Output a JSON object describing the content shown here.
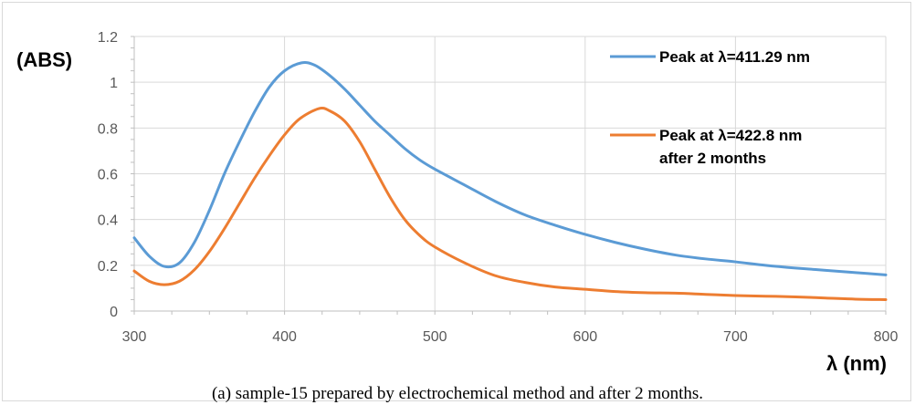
{
  "chart_data": {
    "type": "line",
    "ylabel": "(ABS)",
    "xlabel": "λ (nm)",
    "caption": "(a) sample-15 prepared by electrochemical method and after 2 months.",
    "xlim": [
      300,
      800
    ],
    "ylim": [
      0,
      1.2
    ],
    "x_ticks": [
      "300",
      "400",
      "500",
      "600",
      "700",
      "800"
    ],
    "y_ticks": [
      "0",
      "0.2",
      "0.4",
      "0.6",
      "0.8",
      "1",
      "1.2"
    ],
    "grid": true,
    "legend_position": "top-right",
    "series": [
      {
        "name_lines": [
          "Peak at λ=411.29 nm"
        ],
        "color": "#5b9bd5",
        "points": [
          [
            300,
            0.32
          ],
          [
            310,
            0.24
          ],
          [
            320,
            0.195
          ],
          [
            330,
            0.21
          ],
          [
            340,
            0.3
          ],
          [
            350,
            0.44
          ],
          [
            360,
            0.6
          ],
          [
            370,
            0.74
          ],
          [
            380,
            0.87
          ],
          [
            390,
            0.98
          ],
          [
            400,
            1.05
          ],
          [
            411.29,
            1.085
          ],
          [
            420,
            1.075
          ],
          [
            430,
            1.03
          ],
          [
            440,
            0.97
          ],
          [
            450,
            0.9
          ],
          [
            460,
            0.83
          ],
          [
            470,
            0.77
          ],
          [
            480,
            0.71
          ],
          [
            490,
            0.66
          ],
          [
            500,
            0.62
          ],
          [
            520,
            0.55
          ],
          [
            540,
            0.48
          ],
          [
            560,
            0.42
          ],
          [
            580,
            0.375
          ],
          [
            600,
            0.335
          ],
          [
            620,
            0.3
          ],
          [
            640,
            0.27
          ],
          [
            660,
            0.245
          ],
          [
            680,
            0.228
          ],
          [
            700,
            0.215
          ],
          [
            720,
            0.2
          ],
          [
            740,
            0.188
          ],
          [
            760,
            0.178
          ],
          [
            780,
            0.168
          ],
          [
            800,
            0.158
          ]
        ]
      },
      {
        "name_lines": [
          "Peak at λ=422.8 nm",
          "after 2 months"
        ],
        "color": "#ed7d31",
        "points": [
          [
            300,
            0.175
          ],
          [
            310,
            0.13
          ],
          [
            320,
            0.115
          ],
          [
            330,
            0.13
          ],
          [
            340,
            0.18
          ],
          [
            350,
            0.26
          ],
          [
            360,
            0.36
          ],
          [
            370,
            0.47
          ],
          [
            380,
            0.58
          ],
          [
            390,
            0.68
          ],
          [
            400,
            0.77
          ],
          [
            410,
            0.84
          ],
          [
            422.8,
            0.885
          ],
          [
            430,
            0.875
          ],
          [
            440,
            0.83
          ],
          [
            450,
            0.74
          ],
          [
            460,
            0.62
          ],
          [
            470,
            0.5
          ],
          [
            480,
            0.4
          ],
          [
            490,
            0.33
          ],
          [
            500,
            0.28
          ],
          [
            520,
            0.21
          ],
          [
            540,
            0.155
          ],
          [
            560,
            0.125
          ],
          [
            580,
            0.105
          ],
          [
            600,
            0.095
          ],
          [
            620,
            0.085
          ],
          [
            640,
            0.08
          ],
          [
            660,
            0.078
          ],
          [
            680,
            0.073
          ],
          [
            700,
            0.068
          ],
          [
            720,
            0.065
          ],
          [
            740,
            0.062
          ],
          [
            760,
            0.057
          ],
          [
            780,
            0.052
          ],
          [
            800,
            0.05
          ]
        ]
      }
    ]
  }
}
